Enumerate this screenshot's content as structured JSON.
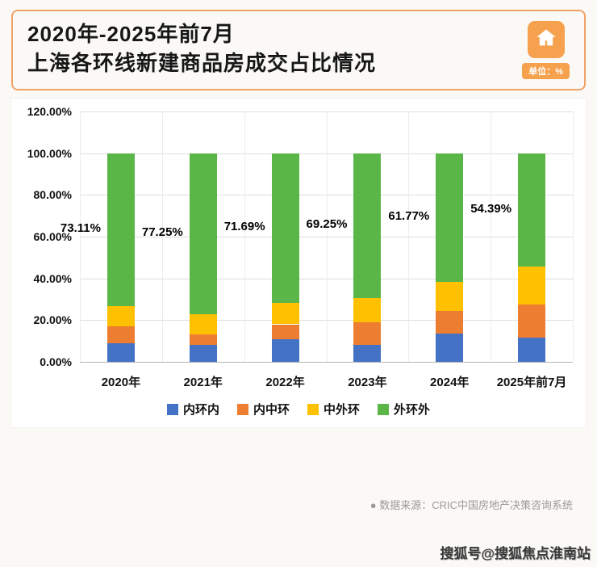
{
  "header": {
    "title_line1": "2020年-2025年前7月",
    "title_line2": "上海各环线新建商品房成交占比情况",
    "unit_label": "单位：%"
  },
  "chart_data": {
    "type": "bar",
    "stacked": true,
    "title": "2020年-2025年前7月上海各环线新建商品房成交占比情况",
    "categories": [
      "2020年",
      "2021年",
      "2022年",
      "2023年",
      "2024年",
      "2025年前7月"
    ],
    "series": [
      {
        "name": "内环内",
        "color": "#4472C4",
        "values": [
          9.0,
          8.0,
          11.0,
          8.0,
          13.5,
          11.5
        ]
      },
      {
        "name": "内中环",
        "color": "#ED7D31",
        "values": [
          8.0,
          5.0,
          7.0,
          11.0,
          11.0,
          16.0
        ]
      },
      {
        "name": "中外环",
        "color": "#FFC000",
        "values": [
          9.89,
          9.75,
          10.31,
          11.75,
          13.73,
          18.11
        ]
      },
      {
        "name": "外环外",
        "color": "#5BB648",
        "values": [
          73.11,
          77.25,
          71.69,
          69.25,
          61.77,
          54.39
        ]
      }
    ],
    "outer_ring_labels": [
      "73.11%",
      "77.25%",
      "71.69%",
      "69.25%",
      "61.77%",
      "54.39%"
    ],
    "y_ticks": [
      "120.00%",
      "100.00%",
      "80.00%",
      "60.00%",
      "40.00%",
      "20.00%",
      "0.00%"
    ],
    "ylim": [
      0,
      120
    ],
    "grid": true,
    "legend_position": "bottom"
  },
  "footer": {
    "source": "●  数据来源：CRIC中国房地产决策咨询系统"
  },
  "watermark": "搜狐号@搜狐焦点淮南站"
}
